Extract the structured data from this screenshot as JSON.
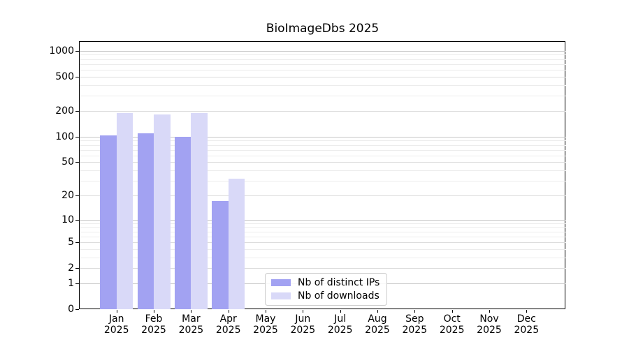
{
  "chart_data": {
    "type": "bar",
    "title": "BioImageDbs 2025",
    "xlabel": "",
    "ylabel": "",
    "categories": [
      "Jan 2025",
      "Feb 2025",
      "Mar 2025",
      "Apr 2025",
      "May 2025",
      "Jun 2025",
      "Jul 2025",
      "Aug 2025",
      "Sep 2025",
      "Oct 2025",
      "Nov 2025",
      "Dec 2025"
    ],
    "series": [
      {
        "name": "Nb of distinct IPs",
        "color": "#a2a2f2",
        "values": [
          103,
          110,
          100,
          17,
          0,
          0,
          0,
          0,
          0,
          0,
          0,
          0
        ]
      },
      {
        "name": "Nb of downloads",
        "color": "#d9d9f8",
        "values": [
          188,
          181,
          190,
          32,
          0,
          0,
          0,
          0,
          0,
          0,
          0,
          0
        ]
      }
    ],
    "yscale": "log10(1+x)",
    "yticks": [
      0,
      1,
      2,
      5,
      10,
      20,
      50,
      100,
      200,
      500,
      1000
    ],
    "ylim": [
      0,
      1300
    ],
    "grid": "both",
    "legend": {
      "position": "inside-bottom-center"
    }
  }
}
